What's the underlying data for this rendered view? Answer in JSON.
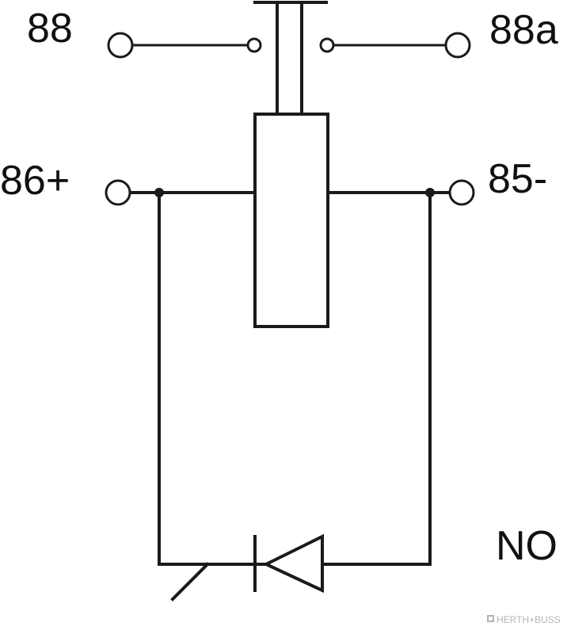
{
  "terminals": {
    "t88": "88",
    "t88a": "88a",
    "t86": "86+",
    "t85": "85-"
  },
  "contact_type": "NO",
  "watermark": "HERTH+BUSS",
  "colors": {
    "line": "#1a1a1a",
    "text": "#111111",
    "watermark": "#b4b4b4",
    "background": "#ffffff"
  }
}
